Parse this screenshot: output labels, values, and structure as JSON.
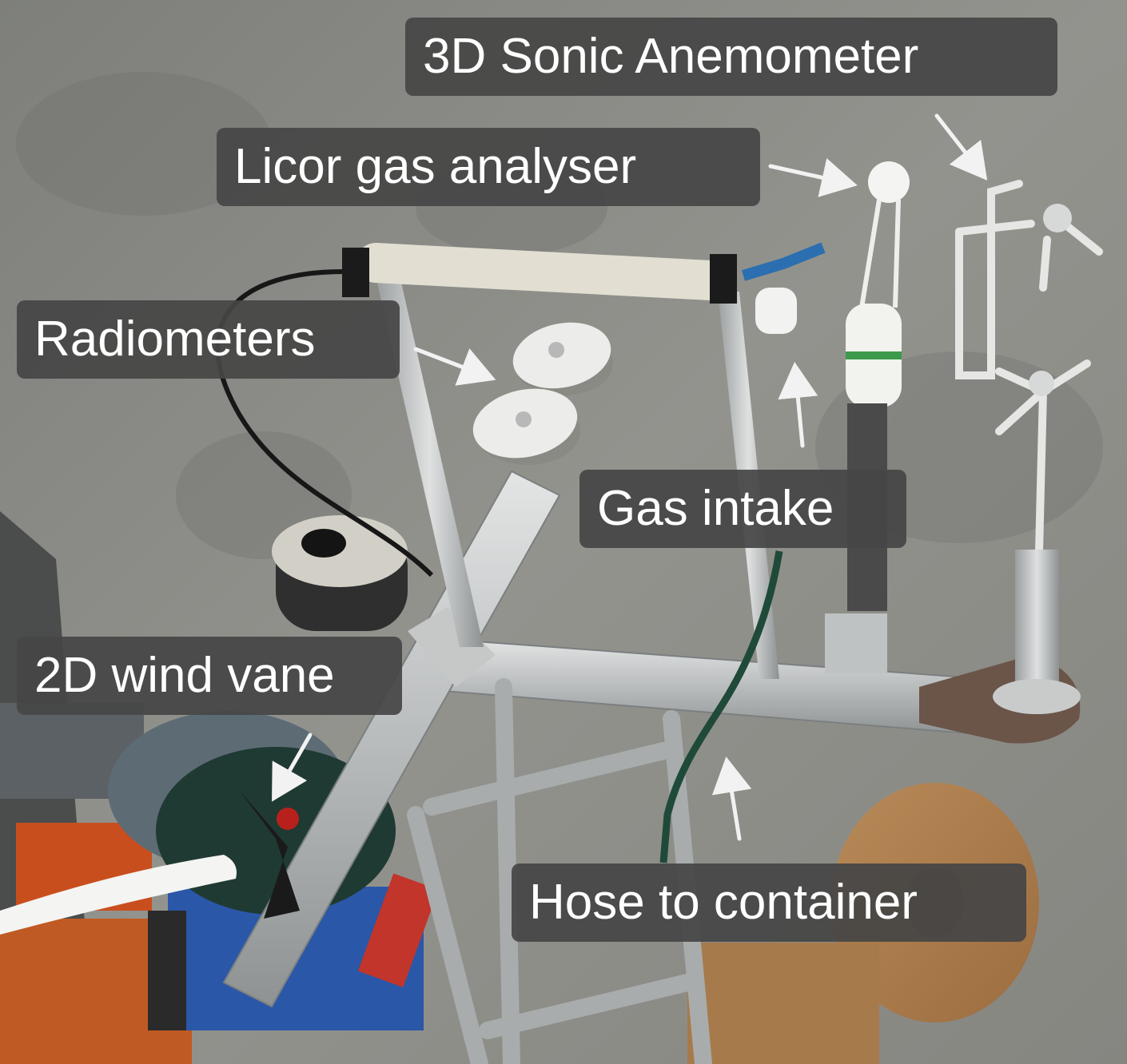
{
  "photo": {
    "colors": {
      "background": "#8f8f89",
      "label_bg": "#464646",
      "label_text": "#ffffff",
      "arrow": "#f2f2f2",
      "aluminium": "#c2c4c4",
      "cable_reel": "#1f3a32"
    }
  },
  "annotations": {
    "sonic_anemometer": "3D Sonic Anemometer",
    "licor_gas_analyser": "Licor gas analyser",
    "radiometers": "Radiometers",
    "gas_intake": "Gas intake",
    "wind_vane": "2D wind vane",
    "hose": "Hose to container"
  }
}
